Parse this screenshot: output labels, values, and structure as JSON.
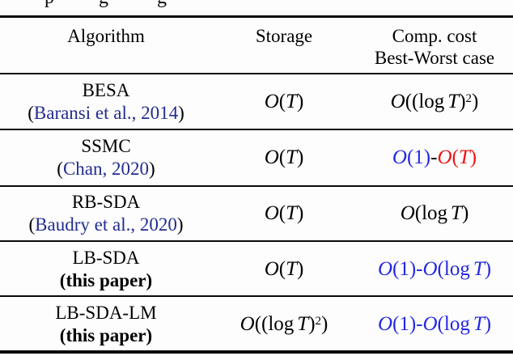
{
  "figure": {
    "cropped_caption_fragments": {
      "f1": "p",
      "f2": "g",
      "f3": "g"
    }
  },
  "colors": {
    "citation_blue": "#222c90",
    "complexity_blue": "#2427e2",
    "complexity_red": "#ee1212",
    "text_black": "#000000"
  },
  "header": {
    "algorithm": "Algorithm",
    "storage": "Storage",
    "comp_cost_line1": "Comp. cost",
    "comp_cost_line2": "Best-Worst case"
  },
  "rows": [
    {
      "name": "BESA",
      "sub_open": "(",
      "sub_text": "Baransi et al., 2014",
      "sub_close": ")",
      "sub_wrap_style": "",
      "sub_text_style": "color:#222c90",
      "storage": "O(T)",
      "comp": [
        {
          "text": "O((log T)^2)",
          "style": "color:#000000"
        }
      ]
    },
    {
      "name": "SSMC",
      "sub_open": "(",
      "sub_text": "Chan, 2020",
      "sub_close": ")",
      "sub_wrap_style": "",
      "sub_text_style": "color:#222c90",
      "storage": "O(T)",
      "comp": [
        {
          "text": "O(1)",
          "style": "color:#2427e2"
        },
        {
          "text": "-",
          "style": "color:#000000"
        },
        {
          "text": "O(T)",
          "style": "color:#ee1212"
        }
      ]
    },
    {
      "name": "RB-SDA",
      "sub_open": "(",
      "sub_text": "Baudry et al., 2020",
      "sub_close": ")",
      "sub_wrap_style": "",
      "sub_text_style": "color:#222c90",
      "storage": "O(T)",
      "comp": [
        {
          "text": "O(log T)",
          "style": "color:#000000"
        }
      ]
    },
    {
      "name": "LB-SDA",
      "sub_open": "(",
      "sub_text": "this paper",
      "sub_close": ")",
      "sub_wrap_style": "font-weight:700",
      "sub_text_style": "font-weight:700",
      "storage": "O(T)",
      "comp": [
        {
          "text": "O(1)-O(log T)",
          "style": "color:#2427e2"
        }
      ]
    },
    {
      "name": "LB-SDA-LM",
      "sub_open": "(",
      "sub_text": "this paper",
      "sub_close": ")",
      "sub_wrap_style": "font-weight:700",
      "sub_text_style": "font-weight:700",
      "storage": "O((log T)^2)",
      "comp": [
        {
          "text": "O(1)-O(log T)",
          "style": "color:#2427e2"
        }
      ]
    }
  ]
}
